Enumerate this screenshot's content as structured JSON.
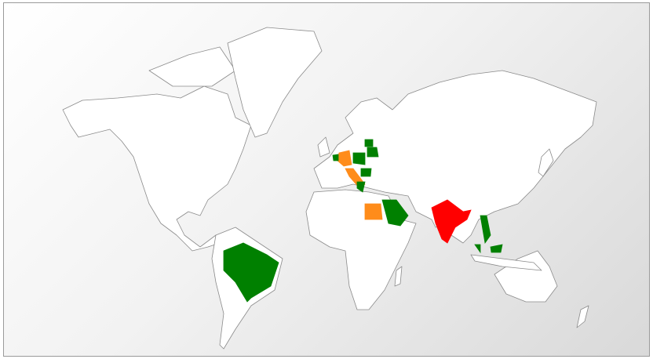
{
  "map": {
    "land_color": "#ffffff",
    "border_color": "#8a8a8a",
    "highlighted_regions": [
      {
        "id": "brazil",
        "color": "#008000"
      },
      {
        "id": "india",
        "color": "#ff0000"
      },
      {
        "id": "germany",
        "color": "#ff8c1a"
      },
      {
        "id": "italy",
        "color": "#ff8c1a"
      },
      {
        "id": "egypt",
        "color": "#ff8c1a"
      },
      {
        "id": "saudi-arabia",
        "color": "#008000"
      },
      {
        "id": "poland",
        "color": "#008000"
      },
      {
        "id": "belarus",
        "color": "#008000"
      },
      {
        "id": "baltics",
        "color": "#008000"
      },
      {
        "id": "romania",
        "color": "#008000"
      },
      {
        "id": "greece",
        "color": "#008000"
      },
      {
        "id": "benelux",
        "color": "#008000"
      },
      {
        "id": "vietnam",
        "color": "#008000"
      },
      {
        "id": "malaysia",
        "color": "#008000"
      }
    ]
  }
}
